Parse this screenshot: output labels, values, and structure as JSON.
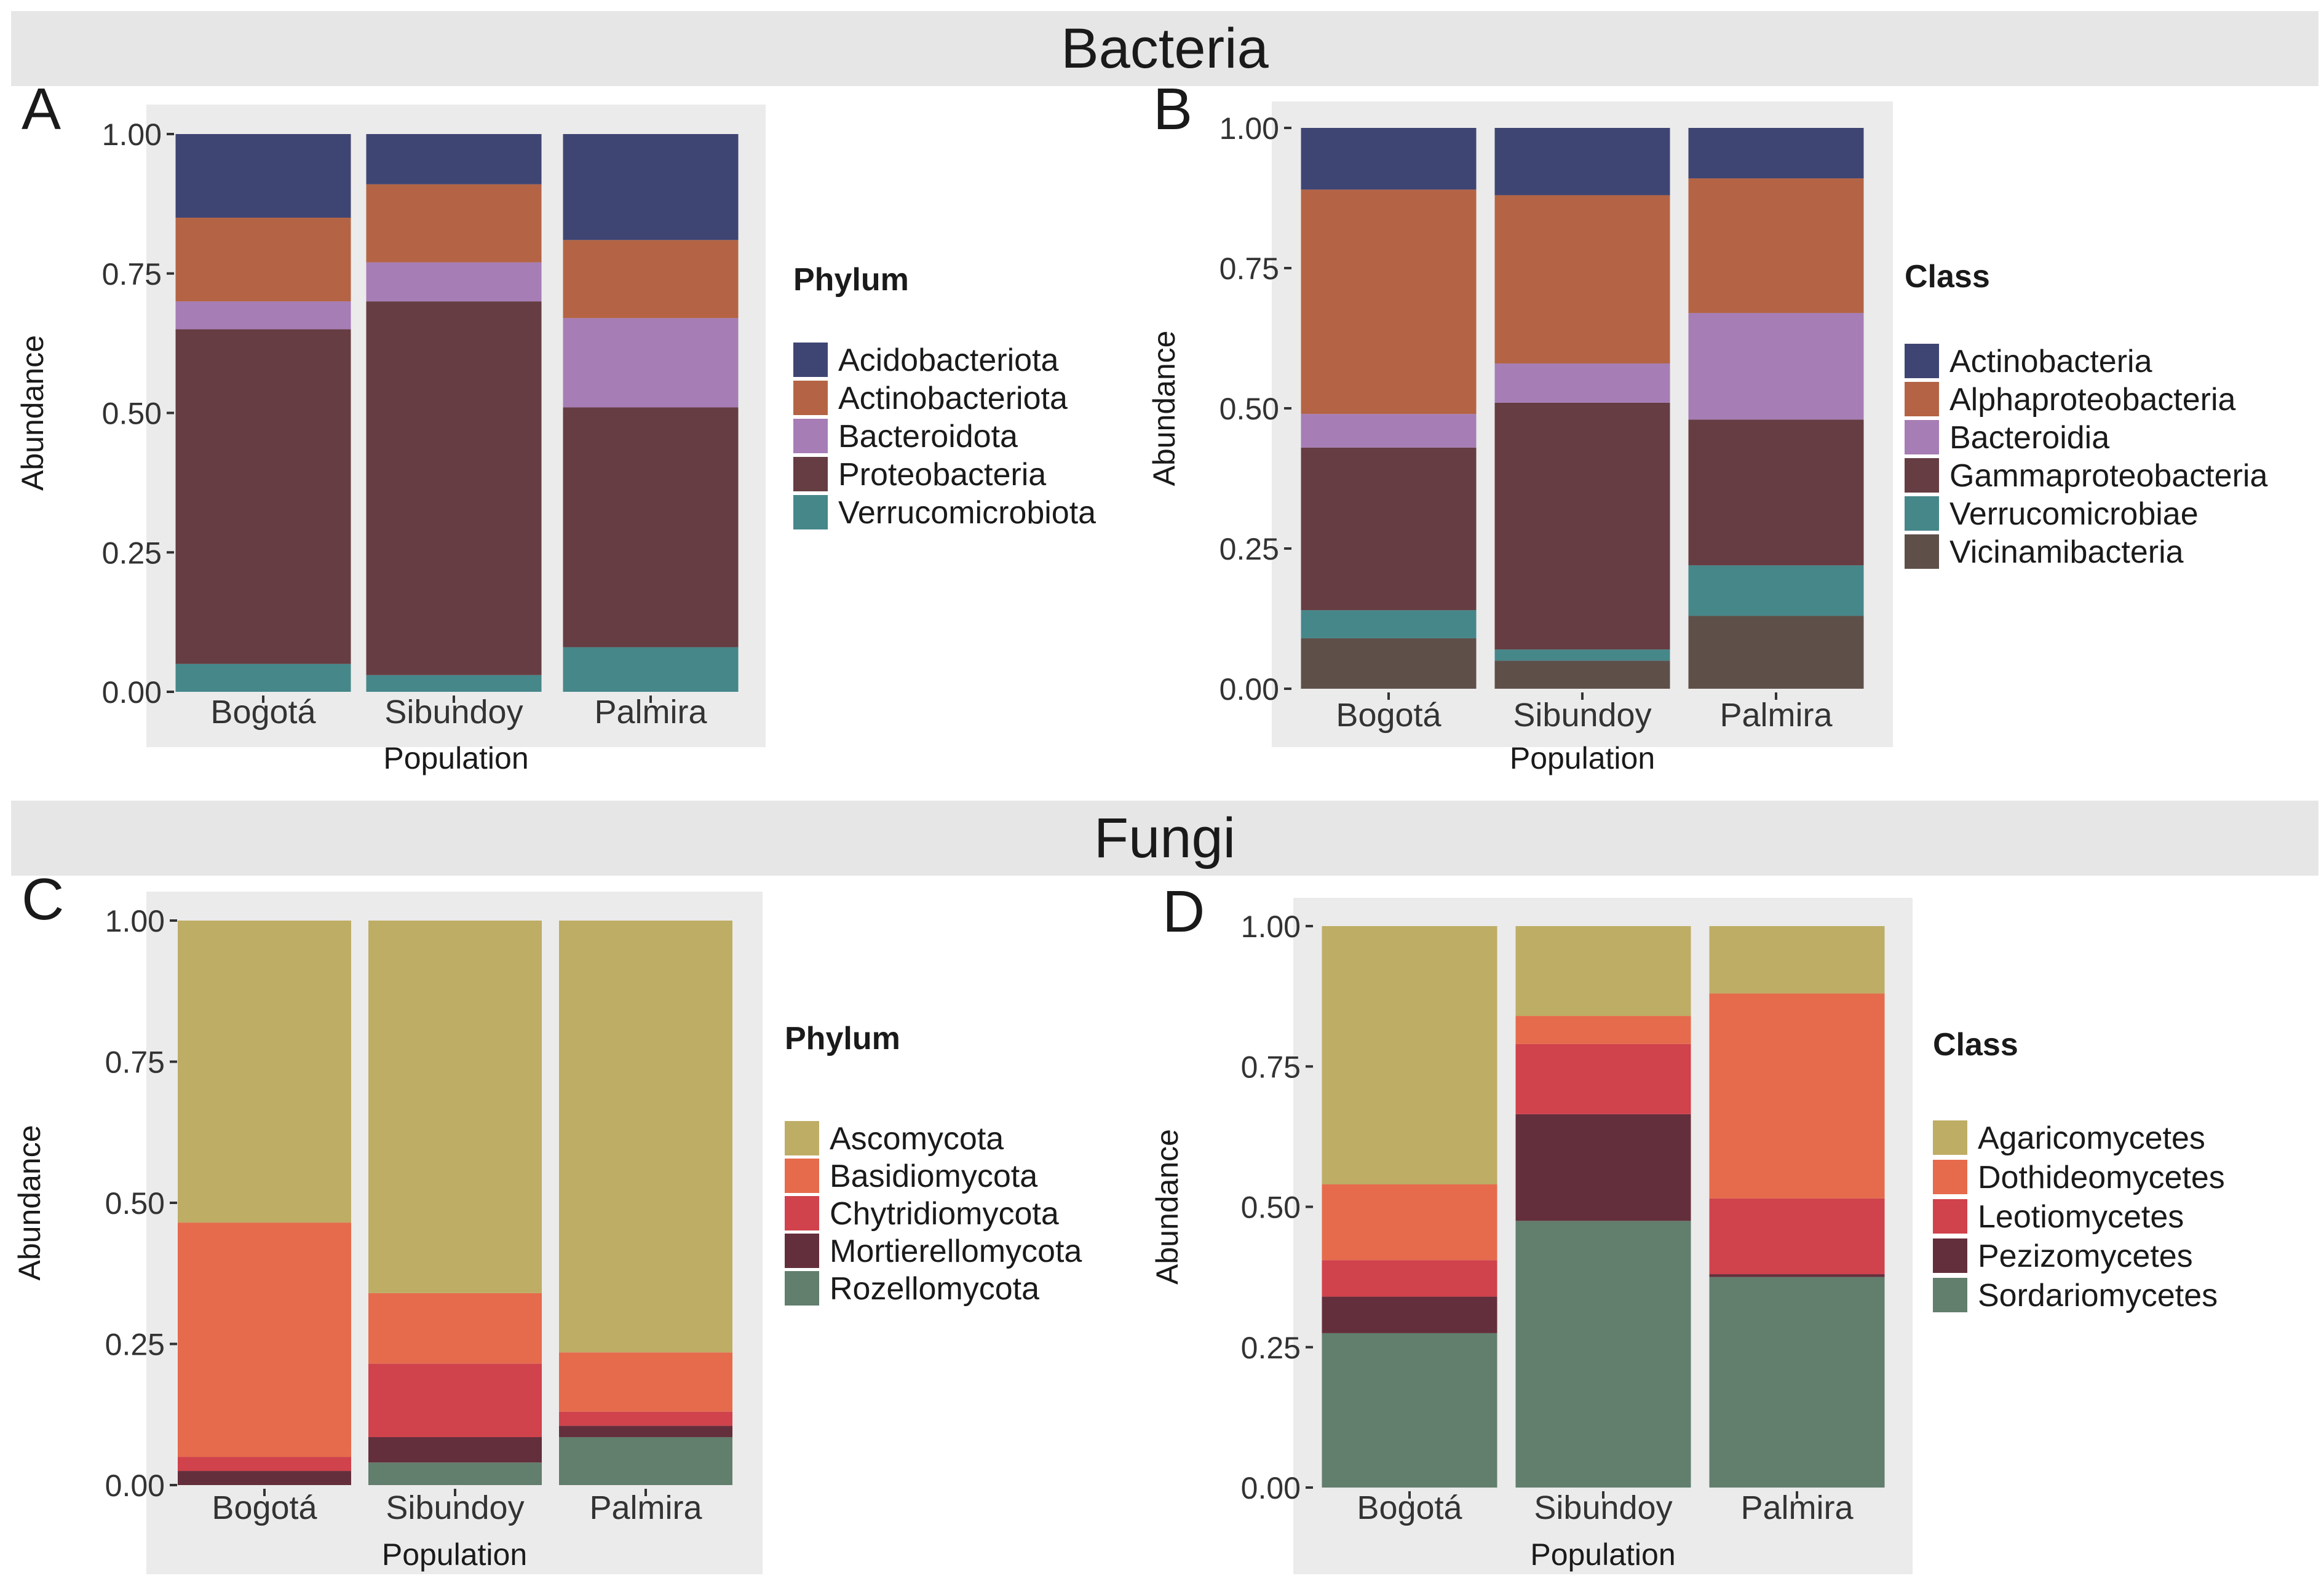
{
  "figure": {
    "bacteria_title": "Bacteria",
    "fungi_title": "Fungi"
  },
  "chart_data": [
    {
      "panel_label": "A",
      "type": "bar",
      "stacked": true,
      "title": "",
      "xlabel": "Population",
      "ylabel": "Abundance",
      "ylim": [
        0,
        1
      ],
      "yticks": [
        "0.00",
        "0.25",
        "0.50",
        "0.75",
        "1.00"
      ],
      "categories": [
        "Bogotá",
        "Sibundoy",
        "Palmira"
      ],
      "legend_title": "Phylum",
      "series": [
        {
          "name": "Verrucomicrobiota",
          "color": "#46878a",
          "values": [
            0.05,
            0.03,
            0.08
          ]
        },
        {
          "name": "Proteobacteria",
          "color": "#653d42",
          "values": [
            0.6,
            0.67,
            0.43
          ]
        },
        {
          "name": "Bacteroidota",
          "color": "#a67db5",
          "values": [
            0.05,
            0.07,
            0.16
          ]
        },
        {
          "name": "Actinobacteriota",
          "color": "#b46444",
          "values": [
            0.15,
            0.14,
            0.14
          ]
        },
        {
          "name": "Acidobacteriota",
          "color": "#3f4573",
          "values": [
            0.15,
            0.09,
            0.19
          ]
        }
      ],
      "legend_order": [
        "Acidobacteriota",
        "Actinobacteriota",
        "Bacteroidota",
        "Proteobacteria",
        "Verrucomicrobiota"
      ]
    },
    {
      "panel_label": "B",
      "type": "bar",
      "stacked": true,
      "title": "",
      "xlabel": "Population",
      "ylabel": "Abundance",
      "ylim": [
        0,
        1
      ],
      "yticks": [
        "0.00",
        "0.25",
        "0.50",
        "0.75",
        "1.00"
      ],
      "categories": [
        "Bogotá",
        "Sibundoy",
        "Palmira"
      ],
      "legend_title": "Class",
      "series": [
        {
          "name": "Vicinamibacteria",
          "color": "#5e5049",
          "values": [
            0.09,
            0.05,
            0.13
          ]
        },
        {
          "name": "Verrucomicrobiae",
          "color": "#46878a",
          "values": [
            0.05,
            0.02,
            0.09
          ]
        },
        {
          "name": "Gammaproteobacteria",
          "color": "#653d42",
          "values": [
            0.29,
            0.44,
            0.26
          ]
        },
        {
          "name": "Bacteroidia",
          "color": "#a67db5",
          "values": [
            0.06,
            0.07,
            0.19
          ]
        },
        {
          "name": "Alphaproteobacteria",
          "color": "#b46444",
          "values": [
            0.4,
            0.3,
            0.24
          ]
        },
        {
          "name": "Actinobacteria",
          "color": "#3f4573",
          "values": [
            0.11,
            0.12,
            0.09
          ]
        }
      ],
      "legend_order": [
        "Actinobacteria",
        "Alphaproteobacteria",
        "Bacteroidia",
        "Gammaproteobacteria",
        "Verrucomicrobiae",
        "Vicinamibacteria"
      ]
    },
    {
      "panel_label": "C",
      "type": "bar",
      "stacked": true,
      "title": "",
      "xlabel": "Population",
      "ylabel": "Abundance",
      "ylim": [
        0,
        1
      ],
      "yticks": [
        "0.00",
        "0.25",
        "0.50",
        "0.75",
        "1.00"
      ],
      "categories": [
        "Bogotá",
        "Sibundoy",
        "Palmira"
      ],
      "legend_title": "Phylum",
      "series": [
        {
          "name": "Rozellomycota",
          "color": "#627e6d",
          "values": [
            0.0,
            0.04,
            0.085
          ]
        },
        {
          "name": "Mortierellomycota",
          "color": "#642f3c",
          "values": [
            0.025,
            0.045,
            0.02
          ]
        },
        {
          "name": "Chytridiomycota",
          "color": "#d0424c",
          "values": [
            0.025,
            0.13,
            0.025
          ]
        },
        {
          "name": "Basidiomycota",
          "color": "#e56b4c",
          "values": [
            0.415,
            0.125,
            0.105
          ]
        },
        {
          "name": "Ascomycota",
          "color": "#bead65",
          "values": [
            0.535,
            0.66,
            0.765
          ]
        }
      ],
      "legend_order": [
        "Ascomycota",
        "Basidiomycota",
        "Chytridiomycota",
        "Mortierellomycota",
        "Rozellomycota"
      ]
    },
    {
      "panel_label": "D",
      "type": "bar",
      "stacked": true,
      "title": "",
      "xlabel": "Population",
      "ylabel": "Abundance",
      "ylim": [
        0,
        1
      ],
      "yticks": [
        "0.00",
        "0.25",
        "0.50",
        "0.75",
        "1.00"
      ],
      "categories": [
        "Bogotá",
        "Sibundoy",
        "Palmira"
      ],
      "legend_title": "Class",
      "series": [
        {
          "name": "Sordariomycetes",
          "color": "#627e6d",
          "values": [
            0.275,
            0.475,
            0.375
          ]
        },
        {
          "name": "Pezizomycetes",
          "color": "#642f3c",
          "values": [
            0.065,
            0.19,
            0.005
          ]
        },
        {
          "name": "Leotiomycetes",
          "color": "#d0424c",
          "values": [
            0.065,
            0.125,
            0.135
          ]
        },
        {
          "name": "Dothideomycetes",
          "color": "#e56b4c",
          "values": [
            0.135,
            0.05,
            0.365
          ]
        },
        {
          "name": "Agaricomycetes",
          "color": "#bead65",
          "values": [
            0.46,
            0.16,
            0.12
          ]
        }
      ],
      "legend_order": [
        "Agaricomycetes",
        "Dothideomycetes",
        "Leotiomycetes",
        "Pezizomycetes",
        "Sordariomycetes"
      ]
    }
  ]
}
